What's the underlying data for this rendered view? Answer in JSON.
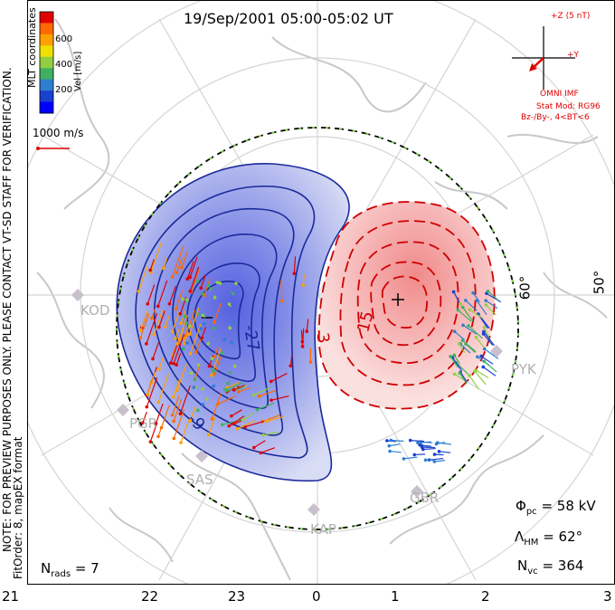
{
  "title": "19/Sep/2001 05:00-05:02 UT",
  "colorbar": {
    "ticks": [
      "600",
      "400",
      "200"
    ],
    "label": "Vel [m/s]",
    "colors": [
      "#e00000",
      "#ff6a00",
      "#ffa000",
      "#f0e000",
      "#90d040",
      "#40b060",
      "#2f7fd0",
      "#1a40d0",
      "#0000ff"
    ]
  },
  "coord_label": "MLT coordinates",
  "ref_vector": "1000 m/s",
  "side_note_1": "NOTE: FOR PREVIEW PURPOSES ONLY. PLEASE CONTACT VT-SD STAFF FOR VERIFICATION.",
  "side_note_2": "FitOrder: 8, mapEX format",
  "imf": {
    "scale": "+Z (5 nT)",
    "y_label": "+Y",
    "source": "OMNI IMF",
    "model": "Stat Mod: RG96",
    "bins": "Bz-/By-, 4<BT<6"
  },
  "latitude_labels": [
    "60°",
    "50°"
  ],
  "stations": [
    "KOD",
    "PGR",
    "SAS",
    "KAP",
    "GBR",
    "PYK"
  ],
  "contour_labels": [
    "-27",
    "-9",
    "3",
    "15"
  ],
  "stats": {
    "phi_symbol": "Φ",
    "phi_sub": "pc",
    "phi_value": "= 58 kV",
    "lambda_symbol": "Λ",
    "lambda_sub": "HM",
    "lambda_value": "= 62°",
    "nvc_symbol": "N",
    "nvc_sub": "vc",
    "nvc_value": "= 364",
    "nrads_symbol": "N",
    "nrads_sub": "rads",
    "nrads_value": "= 7"
  },
  "mlt_ticks": [
    "21",
    "22",
    "23",
    "0",
    "1",
    "2",
    "3"
  ]
}
